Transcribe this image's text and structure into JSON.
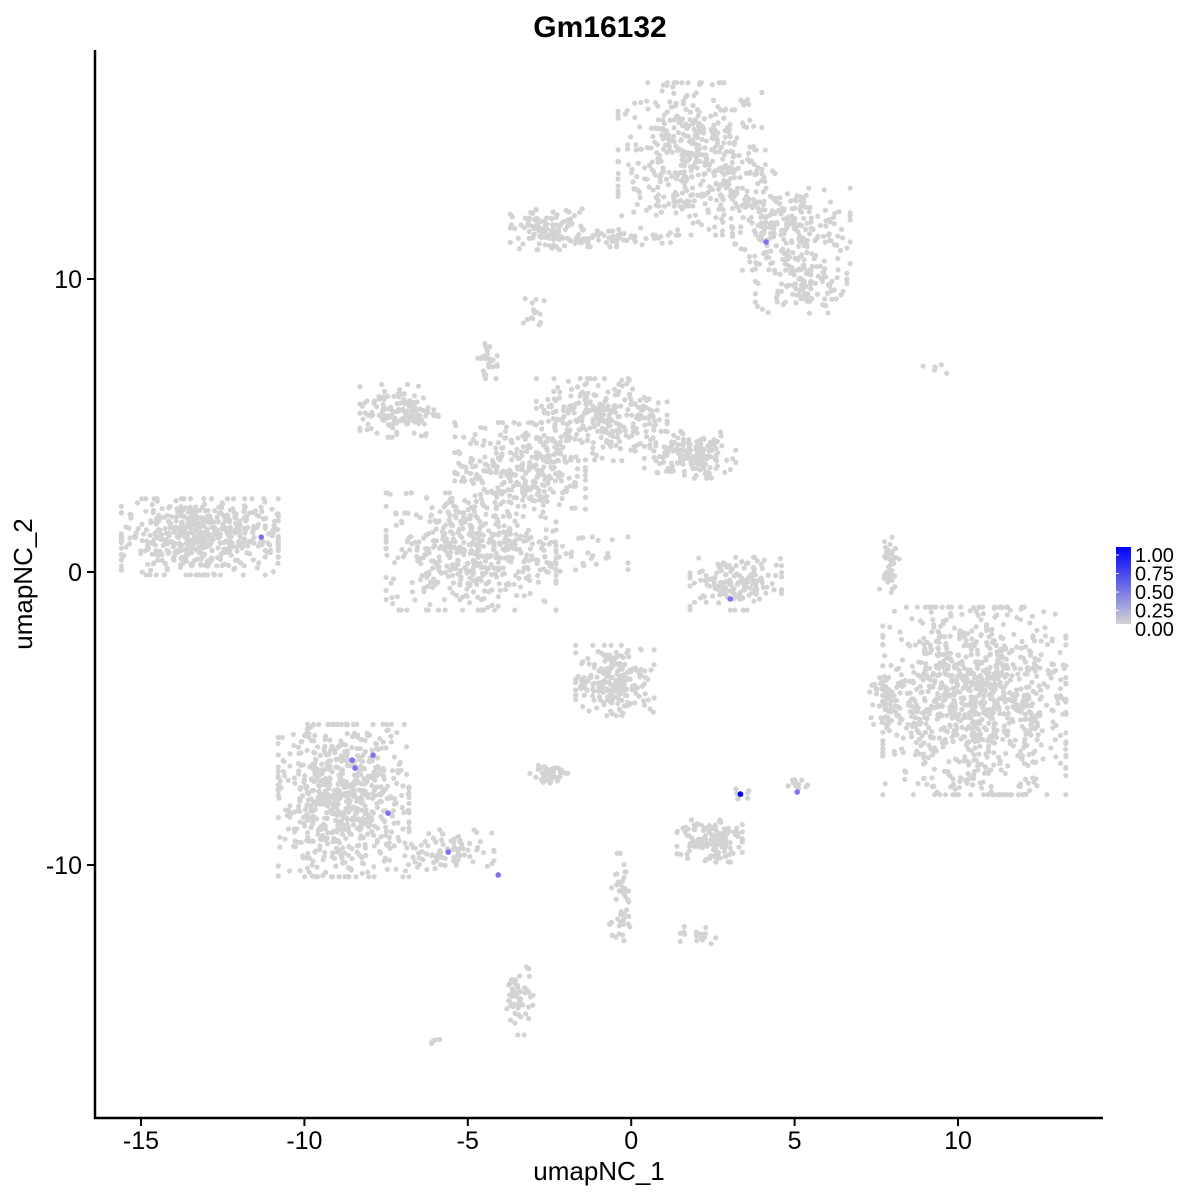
{
  "chart_data": {
    "type": "scatter",
    "title": "Gm16132",
    "xlabel": "umapNC_1",
    "ylabel": "umapNC_2",
    "xlim": [
      -16.5,
      14.3
    ],
    "ylim": [
      -18.6,
      17.9
    ],
    "x_ticks": [
      -15,
      -10,
      -5,
      0,
      5,
      10
    ],
    "x_tick_labels": [
      "-15",
      "-10",
      "-5",
      "0",
      "5",
      "10"
    ],
    "y_ticks": [
      -10,
      0,
      10
    ],
    "y_tick_labels": [
      "-10",
      "0",
      "10"
    ],
    "grid": false,
    "legend": {
      "placement": "right",
      "type": "colorbar",
      "low_color": "#d3d3d3",
      "high_color": "#0000ff",
      "range": [
        0,
        1
      ],
      "ticks": [
        "1.00",
        "0.75",
        "0.50",
        "0.25",
        "0.00"
      ]
    },
    "background_color": "#d3d3d3",
    "background_clusters": [
      {
        "x": 1.8,
        "y": 14.1,
        "sx": 1.1,
        "sy": 1.3,
        "n": 450
      },
      {
        "x": 4.9,
        "y": 11.7,
        "sx": 0.9,
        "sy": 0.7,
        "n": 220
      },
      {
        "x": 5.2,
        "y": 9.8,
        "sx": 0.7,
        "sy": 0.5,
        "n": 110
      },
      {
        "x": 3.4,
        "y": 12.8,
        "sx": 0.5,
        "sy": 0.8,
        "n": 80
      },
      {
        "x": -2.5,
        "y": 11.7,
        "sx": 0.6,
        "sy": 0.35,
        "n": 110
      },
      {
        "x": -0.8,
        "y": 11.4,
        "sx": 1.0,
        "sy": 0.15,
        "n": 60
      },
      {
        "x": -2.9,
        "y": 8.7,
        "sx": 0.2,
        "sy": 0.4,
        "n": 15
      },
      {
        "x": -13.2,
        "y": 1.2,
        "sx": 1.2,
        "sy": 0.65,
        "n": 550
      },
      {
        "x": -7.1,
        "y": 5.5,
        "sx": 0.6,
        "sy": 0.45,
        "n": 140
      },
      {
        "x": -4.9,
        "y": 0.7,
        "sx": 1.3,
        "sy": 1.0,
        "n": 500
      },
      {
        "x": -3.4,
        "y": 3.5,
        "sx": 1.0,
        "sy": 0.8,
        "n": 320
      },
      {
        "x": -0.9,
        "y": 5.2,
        "sx": 1.0,
        "sy": 0.7,
        "n": 300
      },
      {
        "x": 1.8,
        "y": 4.0,
        "sx": 0.7,
        "sy": 0.4,
        "n": 160
      },
      {
        "x": -4.4,
        "y": 7.2,
        "sx": 0.15,
        "sy": 0.3,
        "n": 25
      },
      {
        "x": -1.5,
        "y": 0.6,
        "sx": 0.7,
        "sy": 0.3,
        "n": 30
      },
      {
        "x": 3.2,
        "y": -0.4,
        "sx": 0.7,
        "sy": 0.45,
        "n": 160
      },
      {
        "x": 10.5,
        "y": -4.4,
        "sx": 1.4,
        "sy": 1.6,
        "n": 1000
      },
      {
        "x": 7.9,
        "y": -4.4,
        "sx": 0.3,
        "sy": 0.4,
        "n": 60
      },
      {
        "x": 7.9,
        "y": 0.3,
        "sx": 0.15,
        "sy": 0.5,
        "n": 40
      },
      {
        "x": 9.5,
        "y": 6.9,
        "sx": 0.3,
        "sy": 0.15,
        "n": 6
      },
      {
        "x": -0.5,
        "y": -3.7,
        "sx": 0.6,
        "sy": 0.6,
        "n": 220
      },
      {
        "x": -8.8,
        "y": -7.8,
        "sx": 1.0,
        "sy": 1.3,
        "n": 700
      },
      {
        "x": -5.8,
        "y": -9.5,
        "sx": 0.8,
        "sy": 0.35,
        "n": 90
      },
      {
        "x": -2.5,
        "y": -6.9,
        "sx": 0.3,
        "sy": 0.15,
        "n": 50
      },
      {
        "x": 2.4,
        "y": -9.1,
        "sx": 0.5,
        "sy": 0.4,
        "n": 130
      },
      {
        "x": -0.3,
        "y": -11.2,
        "sx": 0.2,
        "sy": 0.8,
        "n": 45
      },
      {
        "x": -3.4,
        "y": -14.6,
        "sx": 0.2,
        "sy": 0.6,
        "n": 55
      },
      {
        "x": 2.1,
        "y": -12.4,
        "sx": 0.3,
        "sy": 0.15,
        "n": 20
      },
      {
        "x": 5.1,
        "y": -7.3,
        "sx": 0.15,
        "sy": 0.1,
        "n": 15
      },
      {
        "x": 3.4,
        "y": -7.6,
        "sx": 0.1,
        "sy": 0.1,
        "n": 8
      },
      {
        "x": -6.0,
        "y": -16.0,
        "sx": 0.1,
        "sy": 0.08,
        "n": 5
      }
    ],
    "expressing_cells": [
      {
        "x": 4.13,
        "y": 11.26,
        "value": 0.5
      },
      {
        "x": -11.32,
        "y": 1.19,
        "value": 0.5
      },
      {
        "x": 3.03,
        "y": -0.92,
        "value": 0.5
      },
      {
        "x": 3.34,
        "y": -7.58,
        "value": 1.0
      },
      {
        "x": 5.08,
        "y": -7.51,
        "value": 0.5
      },
      {
        "x": -8.54,
        "y": -6.42,
        "value": 0.5
      },
      {
        "x": -8.45,
        "y": -6.69,
        "value": 0.5
      },
      {
        "x": -7.9,
        "y": -6.25,
        "value": 0.5
      },
      {
        "x": -7.44,
        "y": -8.23,
        "value": 0.5
      },
      {
        "x": -5.6,
        "y": -9.56,
        "value": 0.5
      },
      {
        "x": -4.07,
        "y": -10.34,
        "value": 0.5
      }
    ]
  }
}
